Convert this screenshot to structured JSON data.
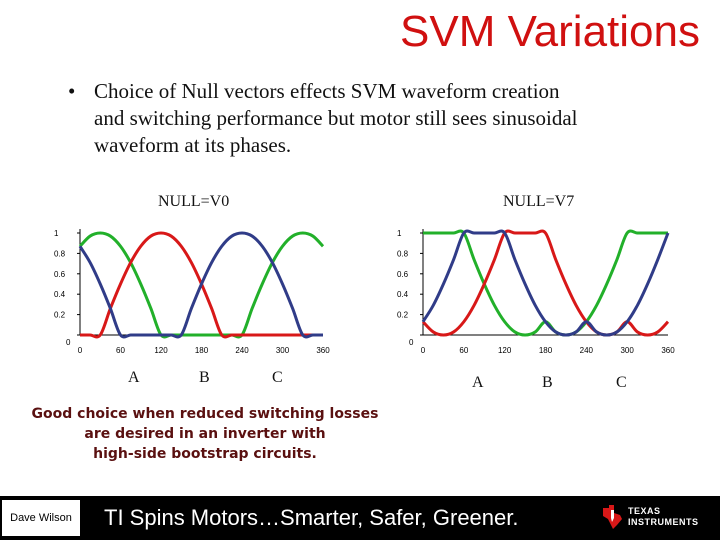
{
  "title": "SVM Variations",
  "bullet": {
    "symbol": "•",
    "lines": [
      "Choice of Null vectors effects SVM waveform creation",
      "and switching performance but motor still sees sinusoidal",
      "waveform at its phases."
    ]
  },
  "note": {
    "lines": [
      "Good choice when reduced switching losses",
      "are desired in an inverter with",
      "high-side bootstrap circuits."
    ]
  },
  "footer": {
    "author": "Dave Wilson",
    "tagline": "TI Spins Motors…Smarter, Safer, Greener.",
    "logo_line1": "TEXAS",
    "logo_line2": "INSTRUMENTS"
  },
  "colors": {
    "phase_a": "#22b02a",
    "phase_b": "#d81818",
    "phase_c": "#303c88",
    "title": "#d01010"
  },
  "chart_data": [
    {
      "type": "line",
      "title": "NULL=V0",
      "x_ticks": [
        0,
        60,
        120,
        180,
        240,
        300,
        360
      ],
      "y_ticks": [
        0,
        0.2,
        0.4,
        0.6,
        0.8,
        1
      ],
      "xlim": [
        0,
        360
      ],
      "ylim": [
        0,
        1
      ],
      "grid": false,
      "phase_labels": [
        "A",
        "B",
        "C"
      ],
      "series": [
        {
          "name": "A",
          "color": "#22b02a",
          "x": [
            0,
            15,
            30,
            45,
            60,
            75,
            90,
            105,
            120,
            135,
            150,
            165,
            180,
            195,
            210,
            225,
            240,
            255,
            270,
            285,
            300,
            315,
            330,
            345,
            360
          ],
          "y": [
            0.87,
            0.97,
            1.0,
            0.97,
            0.87,
            0.71,
            0.5,
            0.26,
            0,
            0,
            0,
            0,
            0,
            0,
            0,
            0,
            0,
            0.26,
            0.5,
            0.71,
            0.87,
            0.97,
            1.0,
            0.97,
            0.87
          ]
        },
        {
          "name": "B",
          "color": "#d81818",
          "x": [
            0,
            15,
            30,
            45,
            60,
            75,
            90,
            105,
            120,
            135,
            150,
            165,
            180,
            195,
            210,
            225,
            240,
            255,
            270,
            285,
            300,
            315,
            330,
            345,
            360
          ],
          "y": [
            0,
            0,
            0,
            0.26,
            0.5,
            0.71,
            0.87,
            0.97,
            1.0,
            0.97,
            0.87,
            0.71,
            0.5,
            0.26,
            0,
            0,
            0,
            0,
            0,
            0,
            0,
            0,
            0,
            0,
            0
          ]
        },
        {
          "name": "C",
          "color": "#303c88",
          "x": [
            0,
            15,
            30,
            45,
            60,
            75,
            90,
            105,
            120,
            135,
            150,
            165,
            180,
            195,
            210,
            225,
            240,
            255,
            270,
            285,
            300,
            315,
            330,
            345,
            360
          ],
          "y": [
            0.87,
            0.71,
            0.5,
            0.26,
            0,
            0,
            0,
            0,
            0,
            0,
            0,
            0.26,
            0.5,
            0.71,
            0.87,
            0.97,
            1.0,
            0.97,
            0.87,
            0.71,
            0.5,
            0.26,
            0,
            0,
            0
          ]
        }
      ]
    },
    {
      "type": "line",
      "title": "NULL=V7",
      "x_ticks": [
        0,
        60,
        120,
        180,
        240,
        300,
        360
      ],
      "y_ticks": [
        0,
        0.2,
        0.4,
        0.6,
        0.8,
        1
      ],
      "xlim": [
        0,
        360
      ],
      "ylim": [
        0,
        1
      ],
      "grid": false,
      "phase_labels": [
        "A",
        "B",
        "C"
      ],
      "series": [
        {
          "name": "A",
          "color": "#22b02a",
          "x": [
            0,
            15,
            30,
            45,
            60,
            75,
            90,
            105,
            120,
            135,
            150,
            165,
            180,
            195,
            210,
            225,
            240,
            255,
            270,
            285,
            300,
            315,
            330,
            345,
            360
          ],
          "y": [
            1,
            1,
            1,
            1,
            1,
            0.74,
            0.5,
            0.29,
            0.13,
            0.03,
            0,
            0.03,
            0.13,
            0.03,
            0,
            0.03,
            0.13,
            0.29,
            0.5,
            0.74,
            1,
            1,
            1,
            1,
            1
          ]
        },
        {
          "name": "B",
          "color": "#d81818",
          "x": [
            0,
            15,
            30,
            45,
            60,
            75,
            90,
            105,
            120,
            135,
            150,
            165,
            180,
            195,
            210,
            225,
            240,
            255,
            270,
            285,
            300,
            315,
            330,
            345,
            360
          ],
          "y": [
            0.13,
            0.03,
            0,
            0.03,
            0.13,
            0.29,
            0.5,
            0.74,
            1,
            1,
            1,
            1,
            1,
            0.74,
            0.5,
            0.29,
            0.13,
            0.03,
            0,
            0.03,
            0.13,
            0.03,
            0,
            0.03,
            0.13
          ]
        },
        {
          "name": "C",
          "color": "#303c88",
          "x": [
            0,
            15,
            30,
            45,
            60,
            75,
            90,
            105,
            120,
            135,
            150,
            165,
            180,
            195,
            210,
            225,
            240,
            255,
            270,
            285,
            300,
            315,
            330,
            345,
            360
          ],
          "y": [
            0.13,
            0.29,
            0.5,
            0.74,
            1,
            1,
            1,
            1,
            1,
            0.74,
            0.5,
            0.29,
            0.13,
            0.03,
            0,
            0.03,
            0.13,
            0.03,
            0,
            0.03,
            0.13,
            0.29,
            0.5,
            0.74,
            1
          ]
        }
      ]
    }
  ]
}
